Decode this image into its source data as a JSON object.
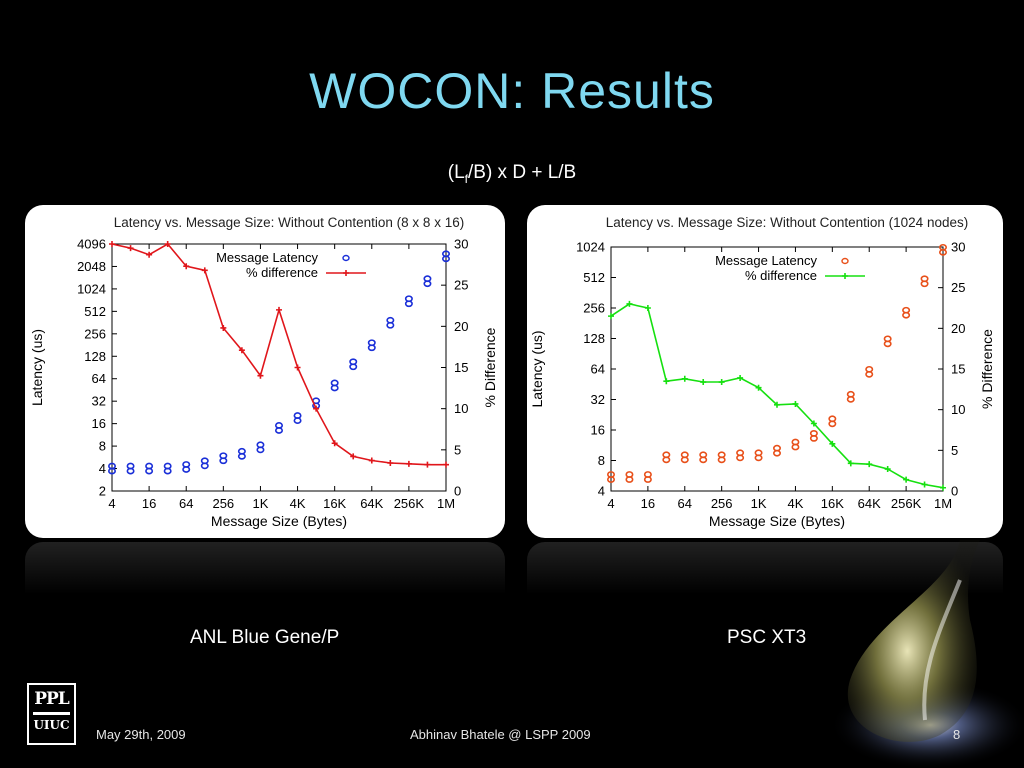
{
  "slide": {
    "title": "WOCON: Results",
    "formula": {
      "pre": "(L",
      "sub": "f",
      "post": "/B) x D + L/B"
    },
    "footer_date": "May 29th, 2009",
    "footer_author": "Abhinav Bhatele @ LSPP 2009",
    "page_number": "8",
    "logo_top": "PPL",
    "logo_bottom": "UIUC",
    "caption_left": "ANL Blue Gene/P",
    "caption_right": "PSC  XT3"
  },
  "chart_data": [
    {
      "type": "scatter",
      "title": "Latency vs. Message Size: Without Contention (8 x 8 x 16)",
      "xlabel": "Message Size (Bytes)",
      "ylabel": "Latency (us)",
      "y2label": "% Difference",
      "xscale": "log2",
      "yscale": "log2",
      "x_ticks": [
        "4",
        "16",
        "64",
        "256",
        "1K",
        "4K",
        "16K",
        "64K",
        "256K",
        "1M"
      ],
      "y_ticks": [
        "2",
        "4",
        "8",
        "16",
        "32",
        "64",
        "128",
        "256",
        "512",
        "1024",
        "2048",
        "4096"
      ],
      "y2_ticks": [
        "0",
        "5",
        "10",
        "15",
        "20",
        "25",
        "30"
      ],
      "xlim": [
        4,
        1048576
      ],
      "ylim": [
        2,
        4096
      ],
      "y2lim": [
        0,
        30
      ],
      "legend": "top-right",
      "series": [
        {
          "name": "Message Latency",
          "axis": "left",
          "style": "points",
          "color": "#1a2fd8",
          "x": [
            4,
            8,
            16,
            32,
            64,
            128,
            256,
            512,
            1024,
            2048,
            4096,
            8192,
            16384,
            32768,
            65536,
            131072,
            262144,
            524288,
            1048576
          ],
          "y": [
            4,
            4,
            4,
            4,
            4.2,
            4.7,
            5.5,
            6.3,
            7.7,
            14,
            19,
            30,
            52,
            100,
            180,
            360,
            700,
            1300,
            2800
          ]
        },
        {
          "name": "% difference",
          "axis": "right",
          "style": "line-points",
          "color": "#e0161b",
          "x": [
            4,
            8,
            16,
            32,
            64,
            128,
            256,
            512,
            1024,
            2048,
            4096,
            8192,
            16384,
            32768,
            65536,
            131072,
            262144,
            524288,
            1048576
          ],
          "y": [
            30,
            29.5,
            28.7,
            30,
            27.3,
            26.8,
            19.8,
            17.1,
            14,
            22,
            15,
            10,
            5.8,
            4.2,
            3.7,
            3.4,
            3.3,
            3.2,
            3.2
          ]
        }
      ]
    },
    {
      "type": "scatter",
      "title": "Latency vs. Message Size: Without Contention (1024 nodes)",
      "xlabel": "Message Size (Bytes)",
      "ylabel": "Latency (us)",
      "y2label": "% Difference",
      "xscale": "log2",
      "yscale": "log2",
      "x_ticks": [
        "4",
        "16",
        "64",
        "256",
        "1K",
        "4K",
        "16K",
        "64K",
        "256K",
        "1M"
      ],
      "y_ticks": [
        "4",
        "8",
        "16",
        "32",
        "64",
        "128",
        "256",
        "512",
        "1024"
      ],
      "y2_ticks": [
        "0",
        "5",
        "10",
        "15",
        "20",
        "25",
        "30"
      ],
      "xlim": [
        4,
        1048576
      ],
      "ylim": [
        4,
        1024
      ],
      "y2lim": [
        0,
        30
      ],
      "legend": "top-right",
      "series": [
        {
          "name": "Message Latency",
          "axis": "left",
          "style": "points",
          "color": "#e8501a",
          "x": [
            4,
            8,
            16,
            32,
            64,
            128,
            256,
            512,
            1024,
            2048,
            4096,
            8192,
            16384,
            32768,
            65536,
            131072,
            262144,
            524288,
            1048576
          ],
          "y": [
            5.5,
            5.5,
            5.5,
            8.6,
            8.6,
            8.6,
            8.6,
            9,
            9,
            10,
            11.5,
            14,
            19.5,
            34,
            60,
            120,
            230,
            470,
            960
          ]
        },
        {
          "name": "% difference",
          "axis": "right",
          "style": "line-points",
          "color": "#16e010",
          "x": [
            4,
            8,
            16,
            32,
            64,
            128,
            256,
            512,
            1024,
            2048,
            4096,
            8192,
            16384,
            32768,
            65536,
            131072,
            262144,
            524288,
            1048576
          ],
          "y": [
            21.5,
            23,
            22.5,
            13.5,
            13.8,
            13.4,
            13.4,
            13.9,
            12.7,
            10.6,
            10.7,
            8.3,
            5.8,
            3.4,
            3.3,
            2.7,
            1.4,
            0.8,
            0.4
          ]
        }
      ]
    }
  ]
}
